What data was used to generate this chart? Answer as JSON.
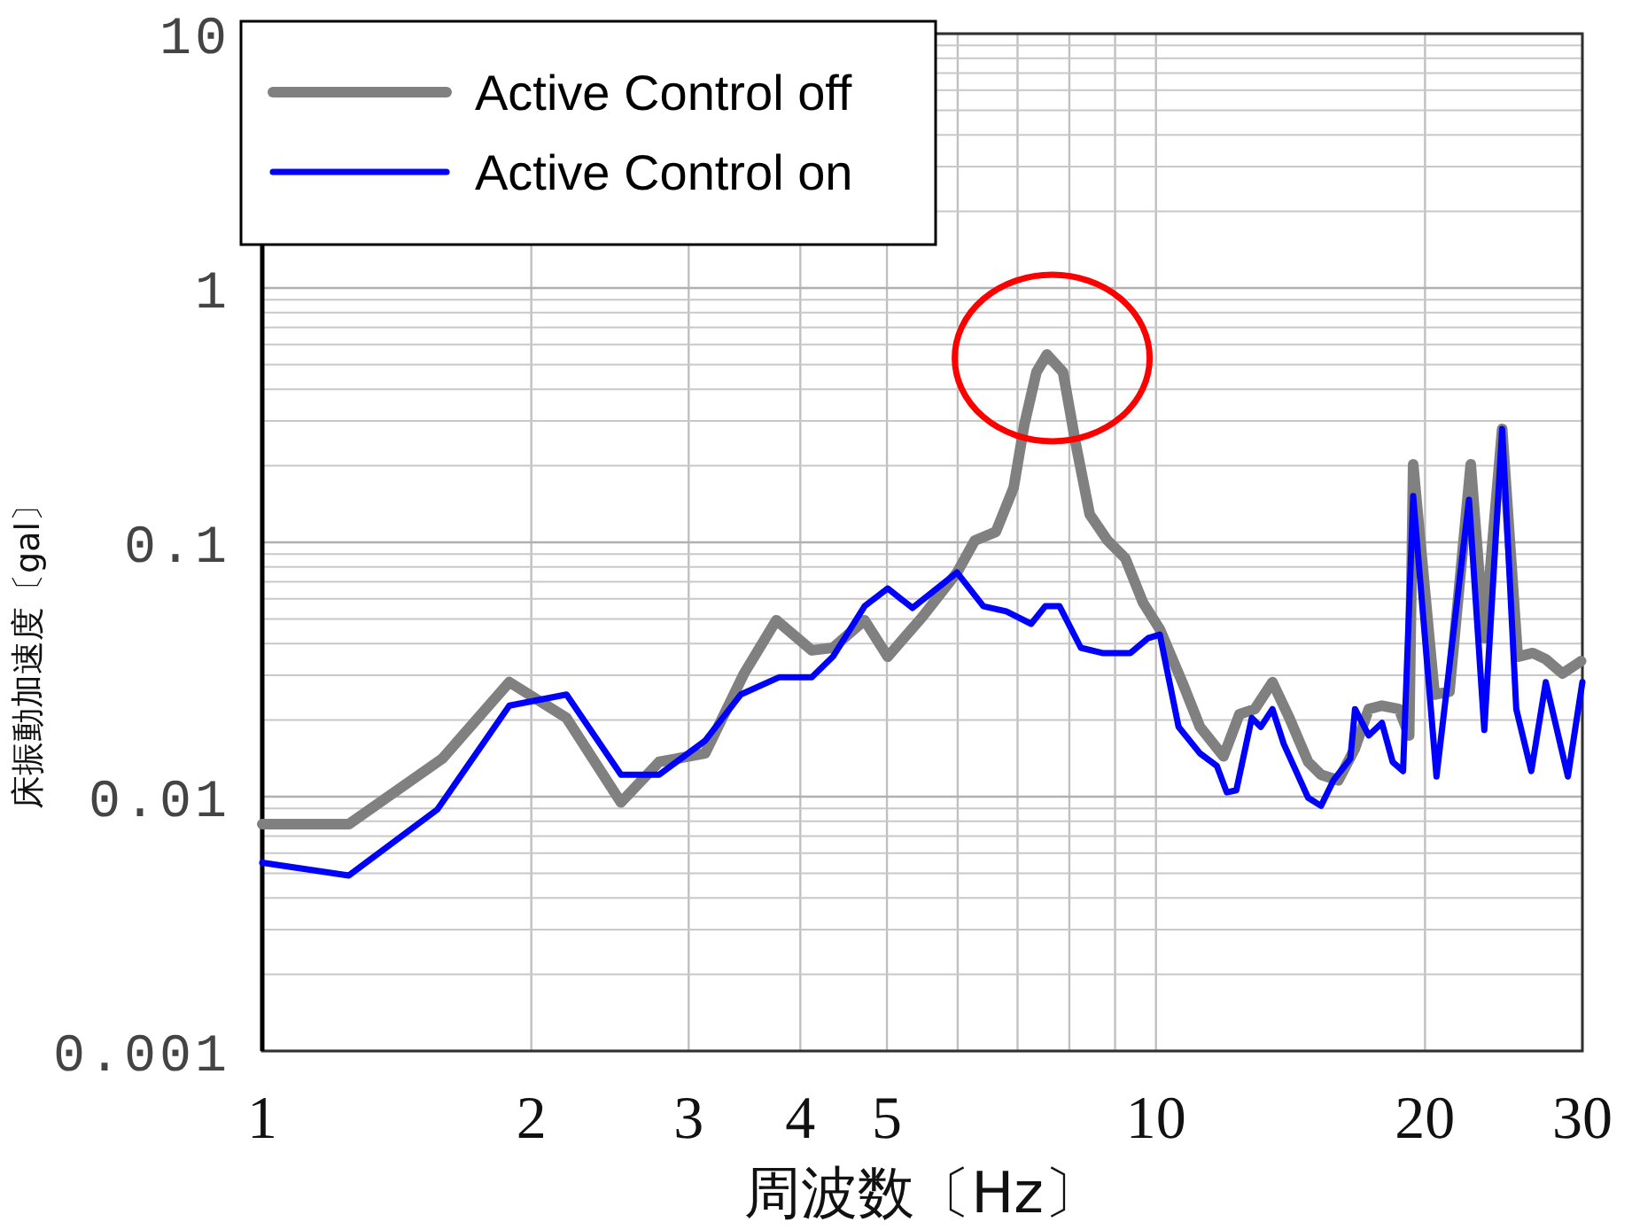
{
  "chart_data": {
    "type": "line",
    "xlabel": "周波数〔Hz〕",
    "ylabel": "床振動加速度〔gal〕",
    "log": "xy",
    "grid": true,
    "legend": "top left",
    "xlim": [
      1,
      30
    ],
    "ylim": [
      0.001,
      10
    ],
    "xticks": [
      1,
      2,
      3,
      4,
      5,
      {
        "value": 6,
        "label": null
      },
      {
        "value": 7,
        "label": null
      },
      {
        "value": 8,
        "label": null
      },
      {
        "value": 9,
        "label": null
      },
      10,
      20,
      30
    ],
    "yticks": [
      0.001,
      0.01,
      0.1,
      1,
      10
    ],
    "series": [
      {
        "name": "Active Control off",
        "color": "#808080",
        "x": [
          1,
          1.25,
          1.59,
          1.89,
          2.19,
          2.52,
          2.78,
          3.13,
          3.46,
          3.76,
          4.12,
          4.35,
          4.72,
          5.01,
          5.47,
          5.99,
          6.27,
          6.62,
          6.93,
          7.12,
          7.35,
          7.55,
          7.87,
          8.13,
          8.43,
          8.83,
          9.24,
          9.67,
          10.1,
          10.7,
          11.2,
          11.9,
          12.4,
          12.9,
          13.5,
          14.1,
          14.8,
          15.3,
          16.0,
          16.7,
          17.3,
          17.9,
          18.7,
          19.2,
          19.4,
          20.5,
          21.3,
          22.5,
          23.3,
          24.4,
          25.4,
          26.4,
          27.3,
          28.5,
          29.9
        ],
        "values": [
          0.0078,
          0.0078,
          0.0141,
          0.0282,
          0.0204,
          0.0095,
          0.0137,
          0.0148,
          0.0305,
          0.0494,
          0.0376,
          0.0385,
          0.0494,
          0.0355,
          0.0506,
          0.0761,
          0.1016,
          0.11,
          0.164,
          0.288,
          0.467,
          0.548,
          0.467,
          0.246,
          0.129,
          0.1016,
          0.0866,
          0.058,
          0.0455,
          0.0282,
          0.0188,
          0.0144,
          0.0211,
          0.0221,
          0.0282,
          0.0204,
          0.0137,
          0.0122,
          0.0116,
          0.0155,
          0.0221,
          0.0228,
          0.0221,
          0.0174,
          0.2026,
          0.0252,
          0.0259,
          0.2026,
          0.042,
          0.279,
          0.0355,
          0.0367,
          0.0347,
          0.0305,
          0.0341
        ]
      },
      {
        "name": "Active Control on",
        "color": "#0000ff",
        "x": [
          1,
          1.25,
          1.57,
          1.89,
          2.19,
          2.52,
          2.78,
          3.13,
          3.43,
          3.79,
          4.12,
          4.35,
          4.72,
          5.01,
          5.34,
          5.99,
          6.41,
          6.8,
          7.25,
          7.52,
          7.8,
          8.24,
          8.71,
          9.36,
          9.8,
          10.1,
          10.6,
          11.2,
          11.7,
          12.0,
          12.3,
          12.8,
          13.1,
          13.5,
          13.9,
          14.8,
          15.3,
          15.8,
          16.5,
          16.7,
          17.3,
          17.9,
          18.4,
          18.9,
          19.4,
          20.6,
          22.4,
          23.3,
          24.4,
          25.3,
          26.3,
          27.3,
          28.9,
          30
        ],
        "values": [
          0.0055,
          0.0049,
          0.0089,
          0.0228,
          0.0252,
          0.0122,
          0.0122,
          0.0166,
          0.0252,
          0.0295,
          0.0295,
          0.0355,
          0.0561,
          0.0659,
          0.0552,
          0.0761,
          0.0561,
          0.0535,
          0.0478,
          0.0561,
          0.0561,
          0.0385,
          0.0367,
          0.0367,
          0.042,
          0.0434,
          0.0188,
          0.0148,
          0.0132,
          0.0104,
          0.0106,
          0.0204,
          0.0188,
          0.0221,
          0.0161,
          0.0099,
          0.0092,
          0.0116,
          0.0141,
          0.0221,
          0.0174,
          0.0195,
          0.0137,
          0.0126,
          0.152,
          0.012,
          0.147,
          0.0183,
          0.279,
          0.0221,
          0.0126,
          0.0282,
          0.012,
          0.0282
        ]
      }
    ]
  }
}
